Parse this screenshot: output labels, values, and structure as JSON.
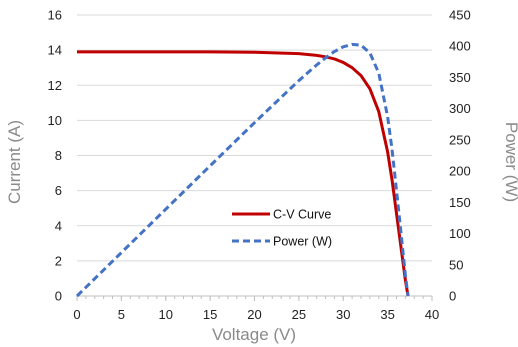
{
  "chart_data": {
    "type": "line",
    "title": "",
    "xlabel": "Voltage (V)",
    "ylabel": "Current (A)",
    "y2label": "Power (W)",
    "xlim": [
      0,
      40
    ],
    "ylim": [
      0,
      16
    ],
    "y2lim": [
      0,
      450
    ],
    "x_ticks": [
      "0",
      "5",
      "10",
      "15",
      "20",
      "25",
      "30",
      "35",
      "40"
    ],
    "y_ticks": [
      "0",
      "2",
      "4",
      "6",
      "8",
      "10",
      "12",
      "14",
      "16"
    ],
    "y2_ticks": [
      "0",
      "50",
      "100",
      "150",
      "200",
      "250",
      "300",
      "350",
      "400",
      "450"
    ],
    "grid": "horizontal",
    "legend_position": "center-right",
    "series": [
      {
        "name": "C-V Curve",
        "axis": "left",
        "color": "#c00000",
        "style": "solid",
        "x": [
          0,
          5,
          10,
          15,
          20,
          25,
          27,
          28,
          29,
          30,
          31,
          32,
          33,
          34,
          35,
          35.5,
          36,
          36.5,
          37,
          37.3
        ],
        "y": [
          13.9,
          13.9,
          13.9,
          13.9,
          13.88,
          13.8,
          13.7,
          13.62,
          13.5,
          13.3,
          13.0,
          12.55,
          11.8,
          10.5,
          8.2,
          6.6,
          4.7,
          2.8,
          0.9,
          0
        ]
      },
      {
        "name": "Power (W)",
        "axis": "right",
        "color": "#4472c4",
        "style": "dashed",
        "x": [
          0,
          5,
          10,
          15,
          20,
          25,
          27,
          28,
          29,
          30,
          31,
          32,
          33,
          34,
          35,
          35.5,
          36,
          36.5,
          37,
          37.3
        ],
        "y": [
          0,
          69.5,
          139,
          208.5,
          277.6,
          345,
          369.9,
          381.4,
          391.5,
          399,
          403,
          401.6,
          389.4,
          357,
          287,
          234.3,
          169.2,
          102.2,
          33.3,
          0
        ]
      }
    ]
  }
}
